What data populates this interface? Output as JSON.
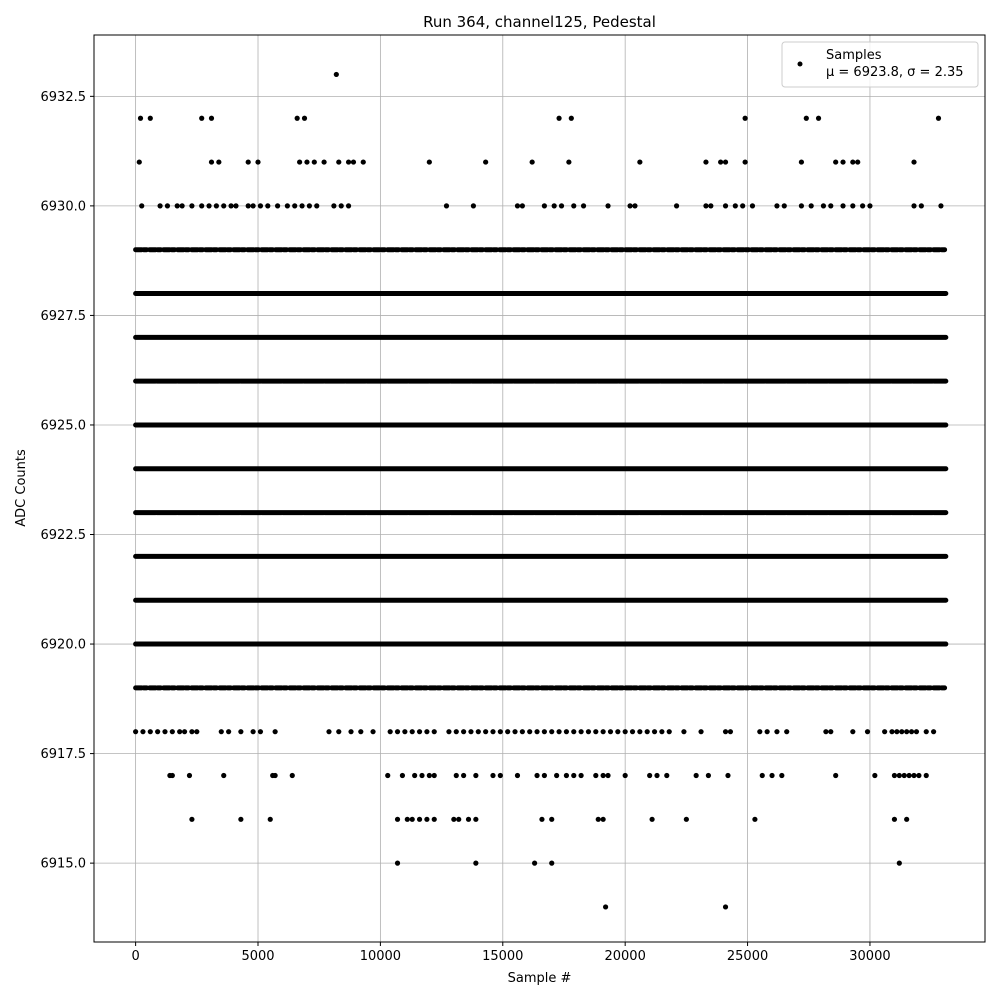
{
  "chart_data": {
    "type": "scatter",
    "title": "Run 364, channel125, Pedestal",
    "xlabel": "Sample #",
    "ylabel": "ADC Counts",
    "xlim": [
      -1700,
      34700
    ],
    "ylim": [
      6913.2,
      6933.9
    ],
    "xticks": [
      0,
      5000,
      10000,
      15000,
      20000,
      25000,
      30000
    ],
    "yticks": [
      6915.0,
      6917.5,
      6920.0,
      6922.5,
      6925.0,
      6927.5,
      6930.0,
      6932.5
    ],
    "grid": true,
    "marker_color": "#000000",
    "legend": {
      "position": "top-right",
      "series_label": "Samples",
      "stats_label": "μ = 6923.8, σ = 2.35"
    },
    "n_samples": 33100,
    "dense_levels": [
      6919,
      6920,
      6921,
      6922,
      6923,
      6924,
      6925,
      6926,
      6927,
      6928,
      6929
    ],
    "sparse_points": {
      "6933": [
        8200
      ],
      "6932": [
        200,
        600,
        2700,
        3100,
        6600,
        6900,
        17300,
        17800,
        24900,
        27400,
        27900,
        32800
      ],
      "6931": [
        150,
        3100,
        3400,
        4600,
        5000,
        6700,
        7000,
        7300,
        7700,
        8300,
        8700,
        8900,
        9300,
        12000,
        14300,
        16200,
        17700,
        20600,
        23300,
        23900,
        24100,
        24900,
        27200,
        28600,
        28900,
        29300,
        29500,
        31800
      ],
      "6930": [
        250,
        1000,
        1300,
        1700,
        1900,
        2300,
        2700,
        3000,
        3300,
        3600,
        3900,
        4100,
        4600,
        4800,
        5100,
        5400,
        5800,
        6200,
        6500,
        6800,
        7100,
        7400,
        8100,
        8400,
        8700,
        12700,
        13800,
        15600,
        15800,
        16700,
        17100,
        17400,
        17900,
        18300,
        19300,
        20200,
        20400,
        22100,
        23300,
        23500,
        24100,
        24500,
        24800,
        25200,
        26200,
        26500,
        27200,
        27600,
        28100,
        28400,
        28900,
        29300,
        29700,
        30000,
        31800,
        32100,
        32900
      ],
      "6918": [
        0,
        300,
        600,
        900,
        1200,
        1500,
        1800,
        2000,
        2300,
        2500,
        3500,
        3800,
        4300,
        4800,
        5100,
        5700,
        7900,
        8300,
        8800,
        9200,
        9700,
        10400,
        10700,
        11000,
        11300,
        11600,
        11900,
        12200,
        12800,
        13100,
        13400,
        13700,
        14000,
        14300,
        14600,
        14900,
        15200,
        15500,
        15800,
        16100,
        16400,
        16700,
        17000,
        17300,
        17600,
        17900,
        18200,
        18500,
        18800,
        19100,
        19400,
        19700,
        20000,
        20300,
        20600,
        20900,
        21200,
        21500,
        21800,
        22400,
        23100,
        24100,
        24300,
        25500,
        25800,
        26200,
        26600,
        28200,
        28400,
        29300,
        29900,
        30600,
        30900,
        31100,
        31300,
        31500,
        31700,
        31900,
        32300,
        32600
      ],
      "6917": [
        1400,
        1500,
        2200,
        3600,
        5600,
        5700,
        6400,
        10300,
        10900,
        11400,
        11700,
        12000,
        12200,
        13100,
        13400,
        13900,
        14600,
        14900,
        15600,
        16400,
        16700,
        17200,
        17600,
        17900,
        18200,
        18800,
        19100,
        19300,
        20000,
        21000,
        21300,
        21700,
        22900,
        23400,
        24200,
        25600,
        26000,
        26400,
        28600,
        30200,
        31000,
        31200,
        31400,
        31600,
        31800,
        32000,
        32300
      ],
      "6916": [
        2300,
        4300,
        5500,
        10700,
        11100,
        11300,
        11600,
        11900,
        12200,
        13000,
        13200,
        13600,
        13900,
        16600,
        17000,
        18900,
        19100,
        21100,
        22500,
        25300,
        31000,
        31500
      ],
      "6915": [
        10700,
        13900,
        16300,
        17000,
        31200
      ],
      "6914": [
        19200,
        24100
      ]
    }
  }
}
